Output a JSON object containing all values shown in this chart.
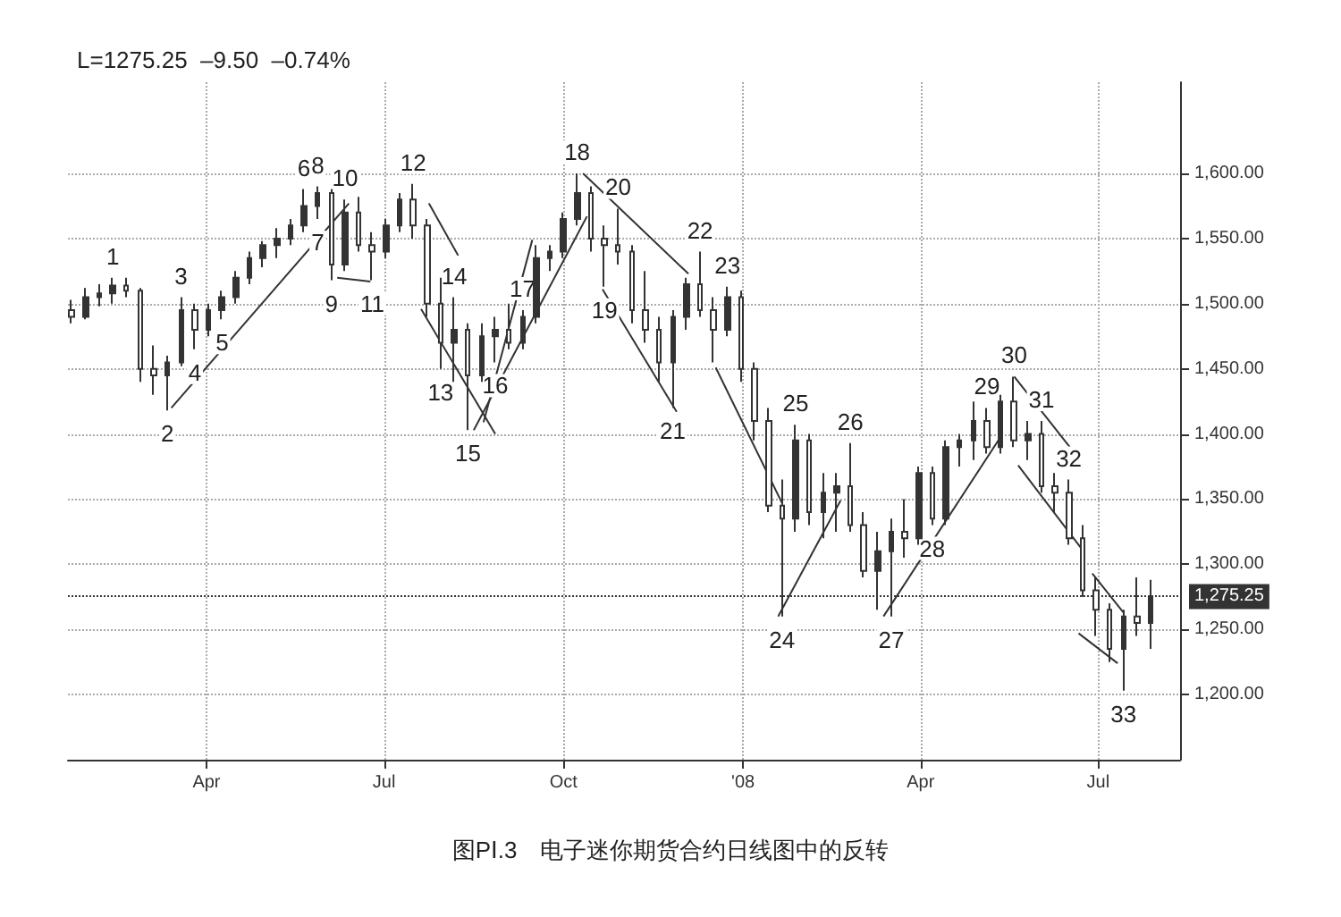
{
  "chart_data": {
    "type": "candlestick",
    "title": "图PⅠ.3　电子迷你期货合约日线图中的反转",
    "subtitle": "L=1275.25  –9.50  –0.74%",
    "x": [
      "2007-01-22",
      "2007-01-29",
      "2007-02-05",
      "2007-02-12",
      "2007-02-19",
      "2007-02-26",
      "2007-03-05",
      "2007-03-12",
      "2007-03-19",
      "2007-03-26",
      "2007-04-02",
      "2007-04-09",
      "2007-04-16",
      "2007-04-23",
      "2007-04-30",
      "2007-05-07",
      "2007-05-14",
      "2007-05-21",
      "2007-05-28",
      "2007-06-04",
      "2007-06-11",
      "2007-06-18",
      "2007-06-25",
      "2007-07-02",
      "2007-07-09",
      "2007-07-16",
      "2007-07-23",
      "2007-07-30",
      "2007-08-06",
      "2007-08-13",
      "2007-08-20",
      "2007-08-27",
      "2007-09-03",
      "2007-09-10",
      "2007-09-17",
      "2007-09-24",
      "2007-10-01",
      "2007-10-08",
      "2007-10-15",
      "2007-10-22",
      "2007-10-29",
      "2007-11-05",
      "2007-11-12",
      "2007-11-19",
      "2007-11-26",
      "2007-12-03",
      "2007-12-10",
      "2007-12-17",
      "2007-12-24",
      "2007-12-31",
      "2008-01-07",
      "2008-01-14",
      "2008-01-21",
      "2008-01-28",
      "2008-02-04",
      "2008-02-11",
      "2008-02-18",
      "2008-02-25",
      "2008-03-03",
      "2008-03-10",
      "2008-03-17",
      "2008-03-24",
      "2008-03-31",
      "2008-04-07",
      "2008-04-14",
      "2008-04-21",
      "2008-04-28",
      "2008-05-05",
      "2008-05-12",
      "2008-05-19",
      "2008-05-26",
      "2008-06-02",
      "2008-06-09",
      "2008-06-16",
      "2008-06-23",
      "2008-06-30",
      "2008-07-07",
      "2008-07-14",
      "2008-07-21",
      "2008-07-28"
    ],
    "ohlc": [
      [
        1495,
        1503,
        1485,
        1490
      ],
      [
        1490,
        1512,
        1488,
        1505
      ],
      [
        1505,
        1515,
        1498,
        1508
      ],
      [
        1508,
        1520,
        1500,
        1514
      ],
      [
        1514,
        1520,
        1505,
        1510
      ],
      [
        1510,
        1512,
        1440,
        1450
      ],
      [
        1450,
        1468,
        1430,
        1445
      ],
      [
        1445,
        1460,
        1418,
        1455
      ],
      [
        1455,
        1505,
        1452,
        1495
      ],
      [
        1495,
        1500,
        1465,
        1480
      ],
      [
        1480,
        1500,
        1475,
        1495
      ],
      [
        1495,
        1510,
        1488,
        1505
      ],
      [
        1505,
        1525,
        1500,
        1520
      ],
      [
        1520,
        1540,
        1515,
        1535
      ],
      [
        1535,
        1548,
        1528,
        1545
      ],
      [
        1545,
        1558,
        1535,
        1550
      ],
      [
        1550,
        1565,
        1545,
        1560
      ],
      [
        1560,
        1588,
        1555,
        1575
      ],
      [
        1575,
        1590,
        1565,
        1585
      ],
      [
        1585,
        1588,
        1518,
        1530
      ],
      [
        1530,
        1580,
        1525,
        1570
      ],
      [
        1570,
        1582,
        1540,
        1545
      ],
      [
        1545,
        1555,
        1518,
        1540
      ],
      [
        1540,
        1565,
        1535,
        1560
      ],
      [
        1560,
        1585,
        1555,
        1580
      ],
      [
        1580,
        1592,
        1550,
        1560
      ],
      [
        1560,
        1565,
        1490,
        1500
      ],
      [
        1500,
        1520,
        1450,
        1470
      ],
      [
        1470,
        1505,
        1440,
        1480
      ],
      [
        1480,
        1485,
        1403,
        1445
      ],
      [
        1445,
        1485,
        1440,
        1475
      ],
      [
        1475,
        1490,
        1455,
        1480
      ],
      [
        1480,
        1500,
        1465,
        1470
      ],
      [
        1470,
        1495,
        1465,
        1490
      ],
      [
        1490,
        1545,
        1485,
        1535
      ],
      [
        1535,
        1545,
        1525,
        1540
      ],
      [
        1540,
        1570,
        1535,
        1565
      ],
      [
        1565,
        1600,
        1560,
        1585
      ],
      [
        1585,
        1590,
        1540,
        1550
      ],
      [
        1550,
        1560,
        1513,
        1545
      ],
      [
        1545,
        1573,
        1530,
        1540
      ],
      [
        1540,
        1545,
        1485,
        1495
      ],
      [
        1495,
        1525,
        1470,
        1480
      ],
      [
        1480,
        1490,
        1440,
        1455
      ],
      [
        1455,
        1495,
        1420,
        1490
      ],
      [
        1490,
        1520,
        1480,
        1515
      ],
      [
        1515,
        1540,
        1490,
        1495
      ],
      [
        1495,
        1505,
        1455,
        1480
      ],
      [
        1480,
        1513,
        1475,
        1505
      ],
      [
        1505,
        1510,
        1440,
        1450
      ],
      [
        1450,
        1455,
        1395,
        1410
      ],
      [
        1410,
        1420,
        1340,
        1345
      ],
      [
        1345,
        1365,
        1260,
        1335
      ],
      [
        1335,
        1407,
        1325,
        1395
      ],
      [
        1395,
        1400,
        1330,
        1340
      ],
      [
        1340,
        1370,
        1320,
        1355
      ],
      [
        1355,
        1370,
        1325,
        1360
      ],
      [
        1360,
        1393,
        1325,
        1330
      ],
      [
        1330,
        1340,
        1290,
        1295
      ],
      [
        1295,
        1325,
        1265,
        1310
      ],
      [
        1310,
        1335,
        1260,
        1325
      ],
      [
        1325,
        1350,
        1305,
        1320
      ],
      [
        1320,
        1375,
        1315,
        1370
      ],
      [
        1370,
        1375,
        1330,
        1335
      ],
      [
        1335,
        1395,
        1330,
        1390
      ],
      [
        1390,
        1400,
        1375,
        1395
      ],
      [
        1395,
        1425,
        1380,
        1410
      ],
      [
        1410,
        1420,
        1385,
        1390
      ],
      [
        1390,
        1430,
        1385,
        1425
      ],
      [
        1425,
        1444,
        1390,
        1395
      ],
      [
        1395,
        1410,
        1380,
        1400
      ],
      [
        1400,
        1410,
        1355,
        1360
      ],
      [
        1360,
        1370,
        1340,
        1355
      ],
      [
        1355,
        1365,
        1315,
        1320
      ],
      [
        1320,
        1330,
        1275,
        1280
      ],
      [
        1280,
        1290,
        1245,
        1265
      ],
      [
        1265,
        1270,
        1225,
        1235
      ],
      [
        1235,
        1265,
        1203,
        1260
      ],
      [
        1260,
        1290,
        1245,
        1255
      ],
      [
        1255,
        1288,
        1235,
        1275.25
      ]
    ],
    "color": "#333333",
    "series": [
      {
        "type": "line",
        "color": "#333333",
        "x": [
          "2007-03-14",
          "2007-06-13"
        ],
        "values": [
          1420,
          1577
        ]
      },
      {
        "type": "line",
        "color": "#333333",
        "x": [
          "2007-06-07",
          "2007-06-24"
        ],
        "values": [
          1520,
          1517
        ]
      },
      {
        "type": "line",
        "color": "#333333",
        "x": [
          "2007-07-24",
          "2007-08-08"
        ],
        "values": [
          1577,
          1537
        ]
      },
      {
        "type": "line",
        "color": "#333333",
        "x": [
          "2007-07-20",
          "2007-08-27"
        ],
        "values": [
          1496,
          1400
        ]
      },
      {
        "type": "line",
        "color": "#333333",
        "x": [
          "2007-08-16",
          "2007-10-13"
        ],
        "values": [
          1403,
          1567
        ]
      },
      {
        "type": "line",
        "color": "#333333",
        "x": [
          "2007-08-21",
          "2007-09-15"
        ],
        "values": [
          1409,
          1549
        ]
      },
      {
        "type": "line",
        "color": "#333333",
        "x": [
          "2007-10-11",
          "2007-12-04"
        ],
        "values": [
          1600,
          1523
        ]
      },
      {
        "type": "line",
        "color": "#333333",
        "x": [
          "2007-10-21",
          "2007-11-28"
        ],
        "values": [
          1511,
          1417
        ]
      },
      {
        "type": "line",
        "color": "#333333",
        "x": [
          "2007-12-18",
          "2008-01-21"
        ],
        "values": [
          1451,
          1347
        ]
      },
      {
        "type": "line",
        "color": "#333333",
        "x": [
          "2008-01-19",
          "2008-02-20"
        ],
        "values": [
          1260,
          1349
        ]
      },
      {
        "type": "line",
        "color": "#333333",
        "x": [
          "2008-03-13",
          "2008-05-13"
        ],
        "values": [
          1260,
          1400
        ]
      },
      {
        "type": "line",
        "color": "#333333",
        "x": [
          "2008-05-19",
          "2008-06-17"
        ],
        "values": [
          1444,
          1389
        ]
      },
      {
        "type": "line",
        "color": "#333333",
        "x": [
          "2008-05-21",
          "2008-06-23"
        ],
        "values": [
          1376,
          1311
        ]
      },
      {
        "type": "line",
        "color": "#333333",
        "x": [
          "2008-06-28",
          "2008-07-14"
        ],
        "values": [
          1293,
          1263
        ]
      },
      {
        "type": "line",
        "color": "#333333",
        "x": [
          "2008-06-21",
          "2008-07-11"
        ],
        "values": [
          1247,
          1224
        ]
      }
    ],
    "xlim": [
      "2007-01-20",
      "2008-08-12"
    ],
    "xticks": [
      {
        "value": "2007-04-01",
        "label": "Apr"
      },
      {
        "value": "2007-07-01",
        "label": "Jul"
      },
      {
        "value": "2007-10-01",
        "label": "Oct"
      },
      {
        "value": "2008-01-01",
        "label": "'08"
      },
      {
        "value": "2008-04-01",
        "label": "Apr"
      },
      {
        "value": "2008-07-01",
        "label": "Jul"
      }
    ],
    "ylim": [
      1150,
      1670
    ],
    "yticks": [
      {
        "value": 1200,
        "label": "1,200.00"
      },
      {
        "value": 1250,
        "label": "1,250.00"
      },
      {
        "value": 1300,
        "label": "1,300.00"
      },
      {
        "value": 1350,
        "label": "1,350.00"
      },
      {
        "value": 1400,
        "label": "1,400.00"
      },
      {
        "value": 1450,
        "label": "1,450.00"
      },
      {
        "value": 1500,
        "label": "1,500.00"
      },
      {
        "value": 1550,
        "label": "1,550.00"
      },
      {
        "value": 1600,
        "label": "1,600.00"
      }
    ],
    "grid": true,
    "ref_lines": [
      {
        "axis": "y",
        "value": 1275.25,
        "label": "1,275.25",
        "color": "#333333"
      }
    ],
    "annotations": [
      {
        "text": "1",
        "x": "2007-02-12",
        "y": 1520
      },
      {
        "text": "2",
        "x": "2007-03-12",
        "y": 1418
      },
      {
        "text": "3",
        "x": "2007-03-19",
        "y": 1505
      },
      {
        "text": "4",
        "x": "2007-03-26",
        "y": 1465
      },
      {
        "text": "5",
        "x": "2007-04-09",
        "y": 1488
      },
      {
        "text": "6",
        "x": "2007-05-21",
        "y": 1588
      },
      {
        "text": "7",
        "x": "2007-05-28",
        "y": 1565
      },
      {
        "text": "8",
        "x": "2007-05-28",
        "y": 1590
      },
      {
        "text": "9",
        "x": "2007-06-04",
        "y": 1518
      },
      {
        "text": "10",
        "x": "2007-06-11",
        "y": 1580
      },
      {
        "text": "11",
        "x": "2007-06-25",
        "y": 1518
      },
      {
        "text": "12",
        "x": "2007-07-16",
        "y": 1592
      },
      {
        "text": "13",
        "x": "2007-07-30",
        "y": 1450
      },
      {
        "text": "14",
        "x": "2007-08-06",
        "y": 1505
      },
      {
        "text": "15",
        "x": "2007-08-13",
        "y": 1403
      },
      {
        "text": "16",
        "x": "2007-08-27",
        "y": 1455
      },
      {
        "text": "17",
        "x": "2007-09-10",
        "y": 1495
      },
      {
        "text": "18",
        "x": "2007-10-08",
        "y": 1600
      },
      {
        "text": "19",
        "x": "2007-10-22",
        "y": 1513
      },
      {
        "text": "20",
        "x": "2007-10-29",
        "y": 1573
      },
      {
        "text": "21",
        "x": "2007-11-26",
        "y": 1420
      },
      {
        "text": "22",
        "x": "2007-12-10",
        "y": 1540
      },
      {
        "text": "23",
        "x": "2007-12-24",
        "y": 1513
      },
      {
        "text": "24",
        "x": "2008-01-21",
        "y": 1260
      },
      {
        "text": "25",
        "x": "2008-01-28",
        "y": 1407
      },
      {
        "text": "26",
        "x": "2008-02-25",
        "y": 1393
      },
      {
        "text": "27",
        "x": "2008-03-17",
        "y": 1260
      },
      {
        "text": "28",
        "x": "2008-04-07",
        "y": 1330
      },
      {
        "text": "29",
        "x": "2008-05-05",
        "y": 1420
      },
      {
        "text": "30",
        "x": "2008-05-19",
        "y": 1444
      },
      {
        "text": "31",
        "x": "2008-06-02",
        "y": 1410
      },
      {
        "text": "32",
        "x": "2008-06-16",
        "y": 1365
      },
      {
        "text": "33",
        "x": "2008-07-14",
        "y": 1203
      }
    ]
  }
}
